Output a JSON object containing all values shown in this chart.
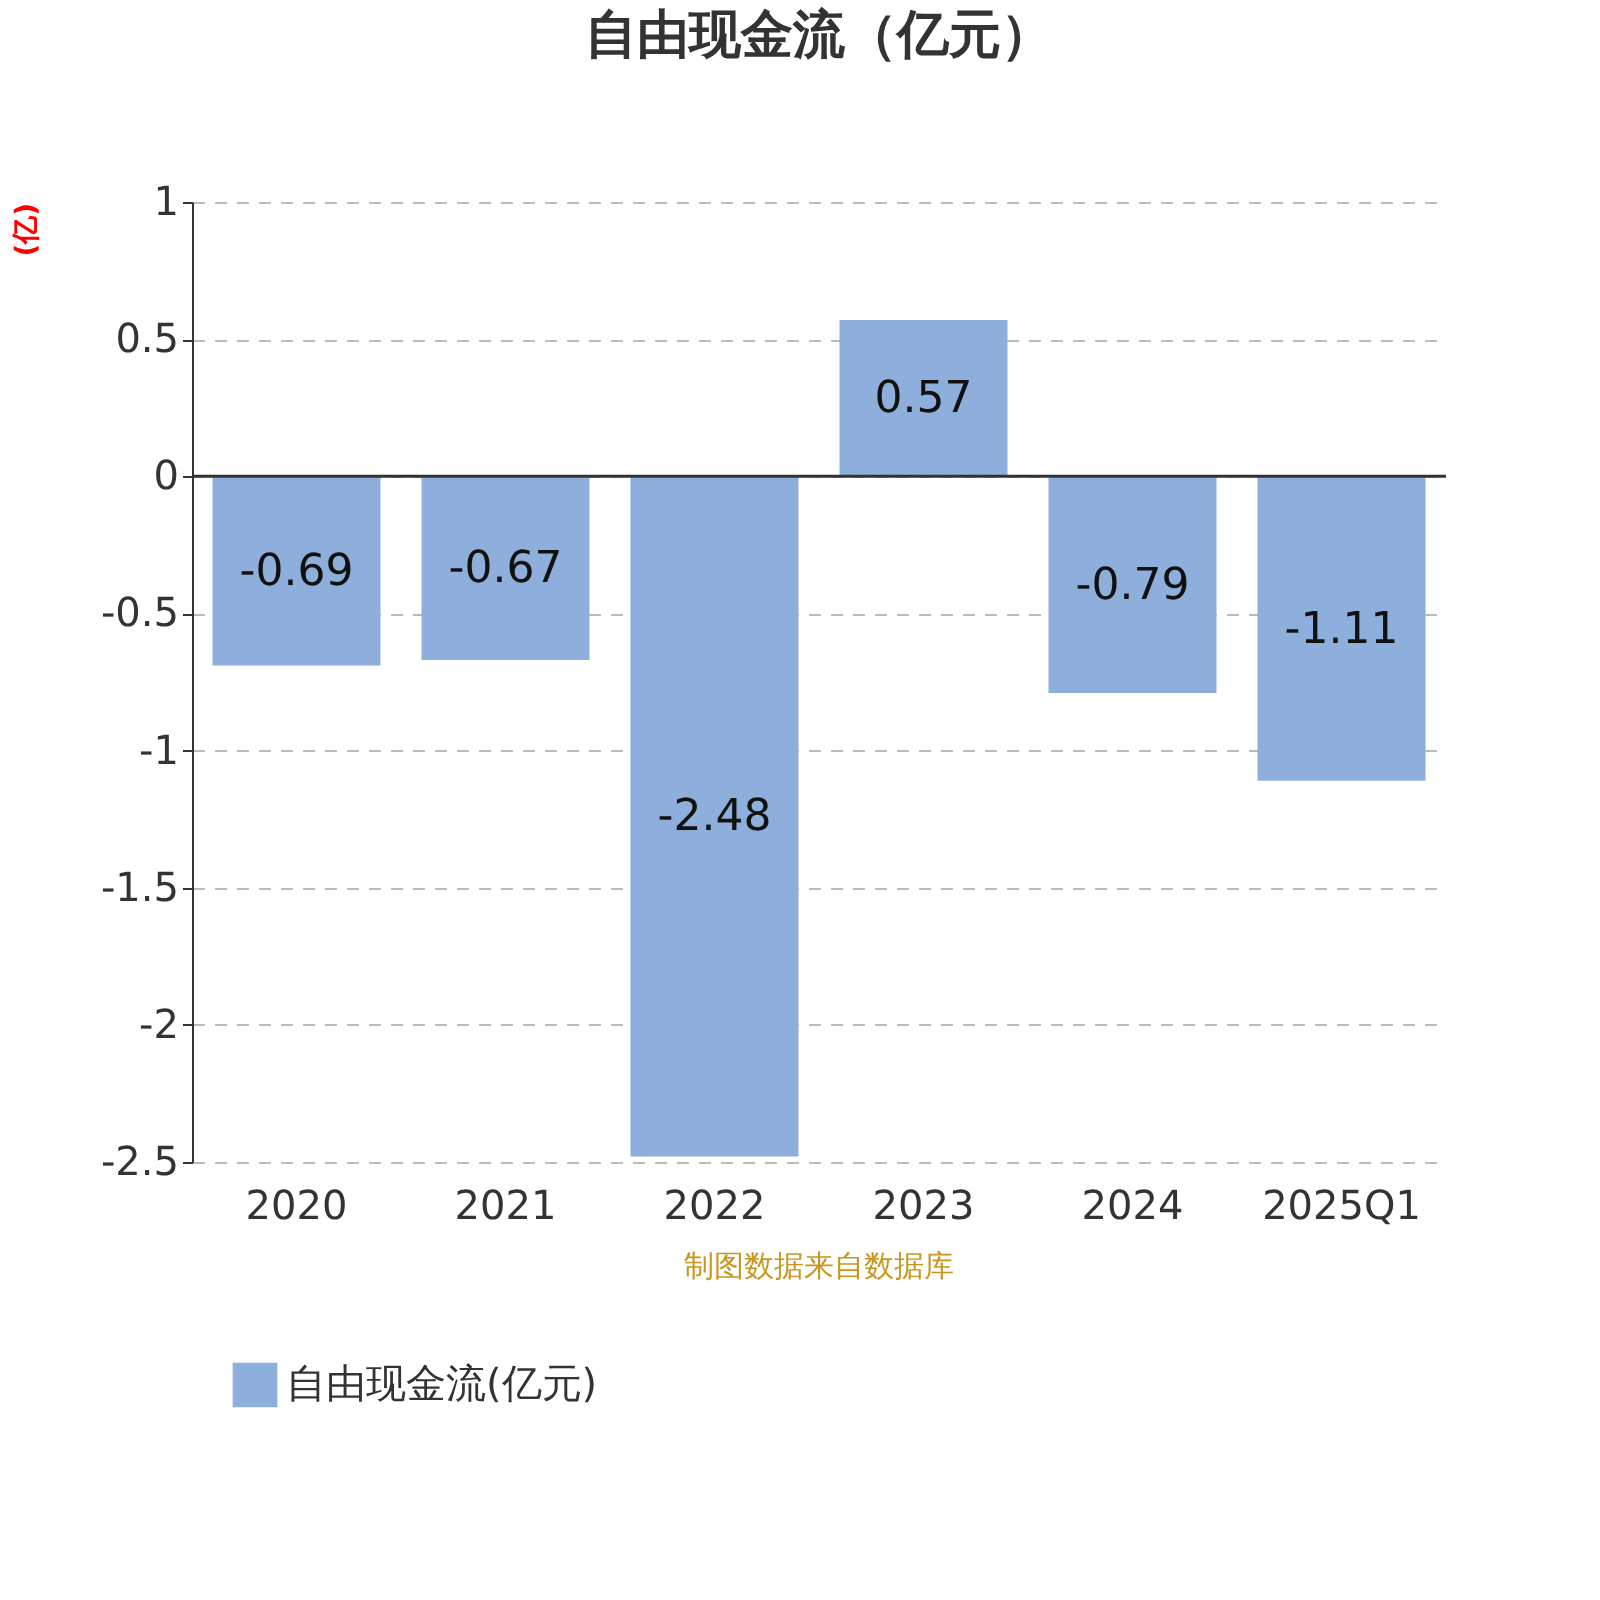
{
  "chart_data": {
    "type": "bar",
    "title": "自由现金流（亿元）",
    "ylabel": "(亿)",
    "categories": [
      "2020",
      "2021",
      "2022",
      "2023",
      "2024",
      "2025Q1"
    ],
    "series": [
      {
        "name": "自由现金流(亿元)",
        "color": "#8eaedb",
        "values": [
          -0.69,
          -0.67,
          -2.48,
          0.57,
          -0.79,
          -1.11
        ]
      }
    ],
    "ylim": [
      -2.5,
      1
    ],
    "yticks": [
      1,
      0.5,
      0,
      -0.5,
      -1,
      -1.5,
      -2,
      -2.5
    ],
    "grid": "y",
    "legend": "bottom",
    "data_labels": true,
    "annotations": [
      "制图数据来自数据库"
    ]
  }
}
